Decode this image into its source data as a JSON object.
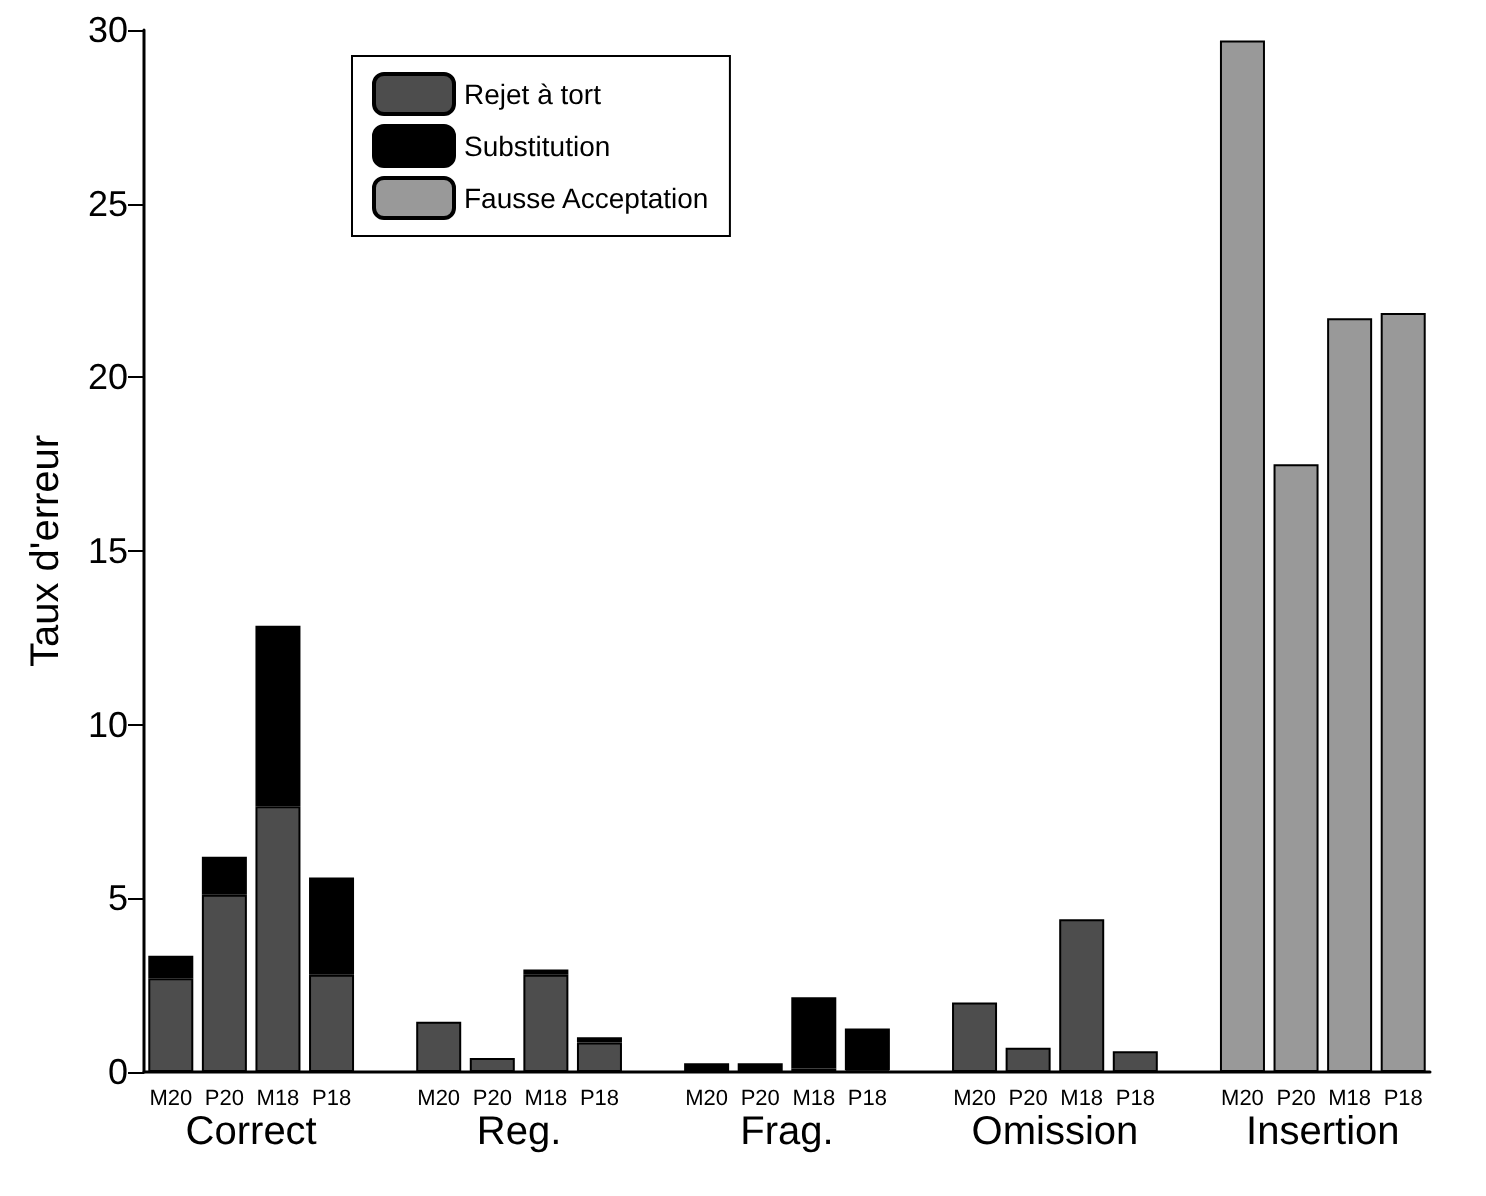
{
  "chart_data": {
    "type": "bar",
    "stacked": true,
    "ylabel": "Taux d'erreur",
    "categories": [
      "M20",
      "P20",
      "M18",
      "P18",
      null,
      "M20",
      "P20",
      "M18",
      "P18",
      null,
      "M20",
      "P20",
      "M18",
      "P18",
      null,
      "M20",
      "P20",
      "M18",
      "P18",
      null,
      "M20",
      "P20",
      "M18",
      "P18"
    ],
    "series": [
      {
        "name": "Rejet à tort",
        "color": "#4d4d4d",
        "values": [
          2.7,
          5.1,
          7.65,
          2.8,
          null,
          1.45,
          0.4,
          2.8,
          0.85,
          null,
          null,
          null,
          0.1,
          0.05,
          null,
          2.0,
          0.7,
          4.4,
          0.6,
          null,
          null,
          null,
          null,
          null
        ]
      },
      {
        "name": "Substitution",
        "color": "#000000",
        "values": [
          0.65,
          1.1,
          5.2,
          2.8,
          null,
          null,
          null,
          0.15,
          0.15,
          null,
          0.25,
          0.25,
          2.05,
          1.2,
          null,
          null,
          null,
          null,
          null,
          null,
          null,
          null,
          null,
          null
        ]
      },
      {
        "name": "Fausse Acceptation",
        "color": "#999999",
        "values": [
          null,
          null,
          null,
          null,
          null,
          null,
          null,
          null,
          null,
          null,
          null,
          null,
          null,
          null,
          null,
          null,
          null,
          null,
          null,
          null,
          29.7,
          17.5,
          21.7,
          21.85
        ]
      }
    ],
    "ylim": [
      0,
      30
    ],
    "yticks": [
      0,
      5,
      10,
      15,
      20,
      25,
      30
    ],
    "grid": false,
    "legend": "top left",
    "annotations": [
      "Correct",
      "Reg.",
      "Frag.",
      "Omission",
      "Insertion"
    ]
  }
}
